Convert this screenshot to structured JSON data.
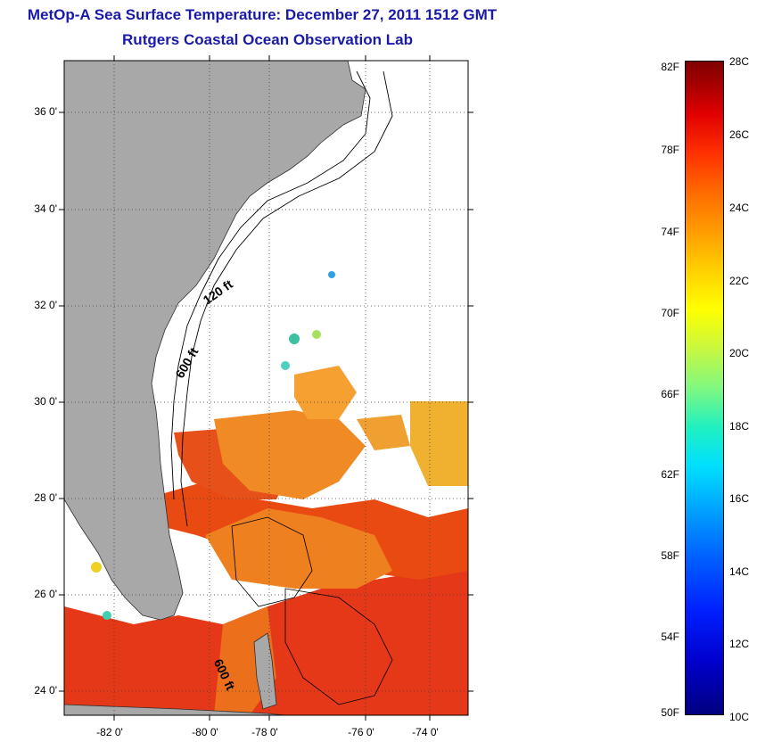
{
  "title": {
    "line1": "MetOp-A Sea Surface Temperature:  December 27, 2011 1512 GMT",
    "line2": "Rutgers Coastal Ocean Observation Lab"
  },
  "map": {
    "x_ticks": [
      "-82 0'",
      "-80 0'",
      "-78 0'",
      "-76 0'",
      "-74 0'"
    ],
    "y_ticks": [
      "36 0'",
      "34 0'",
      "32 0'",
      "30 0'",
      "28 0'",
      "26 0'",
      "24 0'"
    ],
    "contour_labels": [
      "120 ft",
      "600 ft",
      "600 ft"
    ],
    "land_color": "#a8a8a8",
    "warm_color": "#e84010",
    "mid_color": "#f08a20"
  },
  "colorbar": {
    "fahrenheit": [
      "82F",
      "78F",
      "74F",
      "70F",
      "66F",
      "62F",
      "58F",
      "54F",
      "50F"
    ],
    "celsius": [
      "28C",
      "26C",
      "24C",
      "22C",
      "20C",
      "18C",
      "16C",
      "14C",
      "12C",
      "10C"
    ]
  }
}
